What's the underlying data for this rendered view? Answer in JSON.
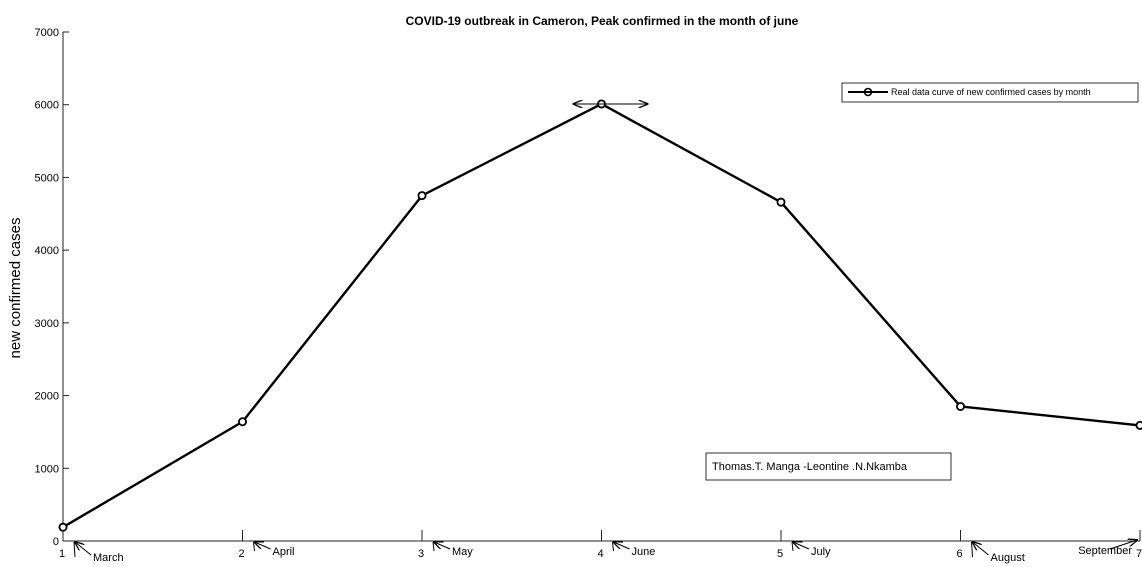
{
  "chart_data": {
    "type": "line",
    "title": "COVID-19 outbreak in Cameron, Peak confirmed in the month of june",
    "xlabel": "",
    "ylabel": "new confirmed cases",
    "xlim": [
      1,
      7
    ],
    "ylim": [
      0,
      7000
    ],
    "x_ticks": [
      1,
      2,
      3,
      4,
      5,
      6,
      7
    ],
    "y_ticks": [
      0,
      1000,
      2000,
      3000,
      4000,
      5000,
      6000,
      7000
    ],
    "grid": false,
    "legend_position": "top-right",
    "series": [
      {
        "name": "Real data curve of new confirmed cases by month",
        "x": [
          1,
          2,
          3,
          4,
          5,
          6,
          7
        ],
        "y": [
          190,
          1640,
          4750,
          6010,
          4660,
          1850,
          1590
        ],
        "color": "#000000",
        "marker": "circle"
      }
    ],
    "month_annotations": [
      "March",
      "April",
      "May",
      "June",
      "July",
      "August",
      "September"
    ],
    "author_box": "Thomas.T. Manga -Leontine .N.Nkamba"
  }
}
